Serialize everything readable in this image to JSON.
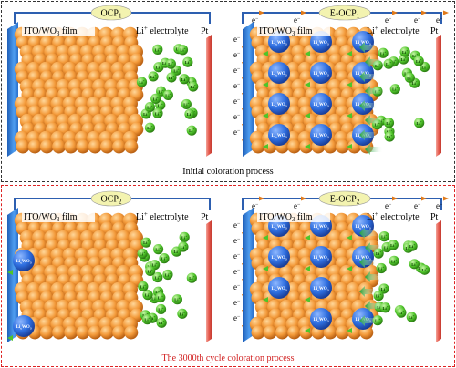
{
  "colors": {
    "sphere_orange": "#f39a3a",
    "sphere_blue": "#2f6fe0",
    "li_green": "#4fc52a",
    "ito_blue": "#3d8be0",
    "pt_red": "#e86a5f",
    "wire_blue": "#2d5fb0",
    "electron_orange": "#e07a1a",
    "label_bubble": "#f3f3b0",
    "caption_red": "#d22222"
  },
  "captions": {
    "top": "Initial coloration process",
    "bottom": "The 3000th cycle coloration process"
  },
  "panels": [
    {
      "id": "ocp1",
      "bubble": "OCP",
      "bubble_sub": "1",
      "film_label_a": "ITO/WO",
      "film_label_sub": "3",
      "film_label_b": " film",
      "electrolyte_a": "Li",
      "electrolyte_sup": "+",
      "electrolyte_b": " electrolyte",
      "pt": "Pt",
      "electrons": false,
      "lixwo3_count": 0
    },
    {
      "id": "eocp1",
      "bubble": "E-OCP",
      "bubble_sub": "1",
      "film_label_a": "ITO/WO",
      "film_label_sub": "3",
      "film_label_b": " film",
      "electrolyte_a": "Li",
      "electrolyte_sup": "+",
      "electrolyte_b": " electrolyte",
      "pt": "Pt",
      "electrons": true,
      "lixwo3_count": 12
    },
    {
      "id": "ocp2",
      "bubble": "OCP",
      "bubble_sub": "2",
      "film_label_a": "ITO/WO",
      "film_label_sub": "3",
      "film_label_b": " film",
      "electrolyte_a": "Li",
      "electrolyte_sup": "+",
      "electrolyte_b": " electrolyte",
      "pt": "Pt",
      "electrons": false,
      "lixwo3_count": 2
    },
    {
      "id": "eocp2",
      "bubble": "E-OCP",
      "bubble_sub": "2",
      "film_label_a": "ITO/WO",
      "film_label_sub": "3",
      "film_label_b": " film",
      "electrolyte_a": "Li",
      "electrolyte_sup": "+",
      "electrolyte_b": " electrolyte",
      "pt": "Pt",
      "electrons": true,
      "lixwo3_count": 10
    }
  ],
  "ion_label": {
    "main": "Li",
    "sup": "+"
  },
  "lixwo3_label": {
    "a": "Li",
    "sub1": "x",
    "b": "WO",
    "sub2": "3"
  },
  "electron_label": {
    "main": "e",
    "sup": "−"
  }
}
